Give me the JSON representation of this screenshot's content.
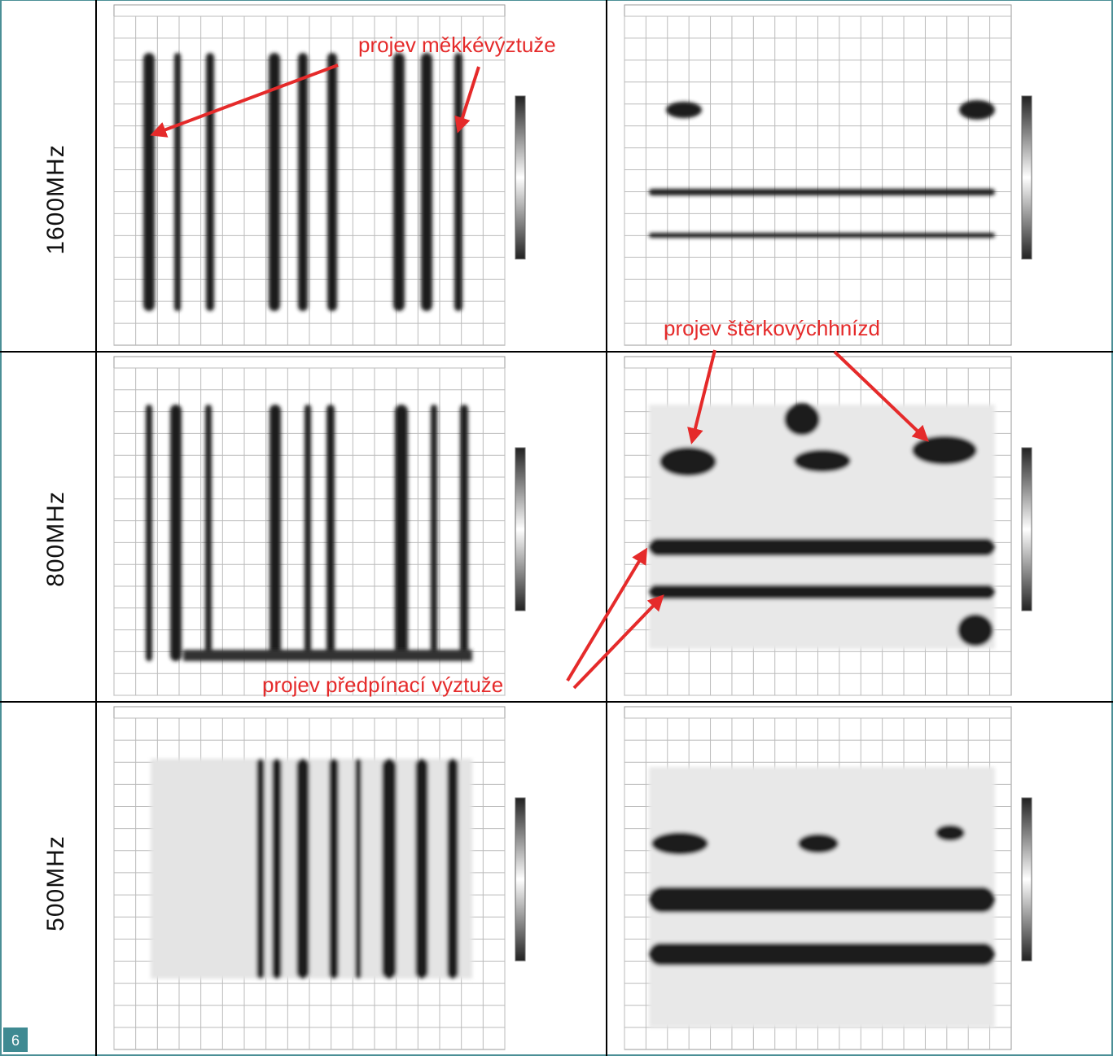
{
  "rows": [
    {
      "label": "1600MHz"
    },
    {
      "label": "800MHz"
    },
    {
      "label": "500MHz"
    }
  ],
  "annotations": [
    "projev měkkévýztuže",
    "projev štěrkovýchhnízd",
    "projev předpínací výztuže"
  ],
  "page_number": "6"
}
